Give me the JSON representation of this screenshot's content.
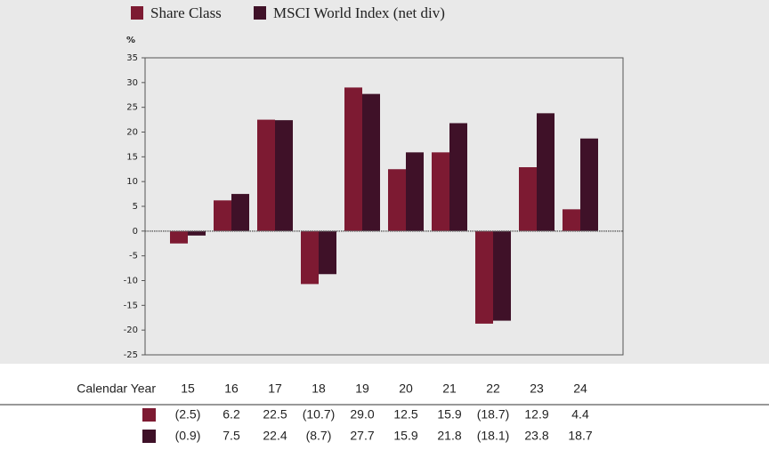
{
  "chart_data": {
    "type": "bar",
    "y_label": "%",
    "x_label": "Calendar Year",
    "categories": [
      "15",
      "16",
      "17",
      "18",
      "19",
      "20",
      "21",
      "22",
      "23",
      "24"
    ],
    "series": [
      {
        "name": "Share Class",
        "color": "#7d1a32",
        "values": [
          -2.5,
          6.2,
          22.5,
          -10.7,
          29.0,
          12.5,
          15.9,
          -18.7,
          12.9,
          4.4
        ],
        "value_labels": [
          "(2.5)",
          "6.2",
          "22.5",
          "(10.7)",
          "29.0",
          "12.5",
          "15.9",
          "(18.7)",
          "12.9",
          "4.4"
        ]
      },
      {
        "name": "MSCI World Index (net div)",
        "color": "#3f1128",
        "values": [
          -0.9,
          7.5,
          22.4,
          -8.7,
          27.7,
          15.9,
          21.8,
          -18.1,
          23.8,
          18.7
        ],
        "value_labels": [
          "(0.9)",
          "7.5",
          "22.4",
          "(8.7)",
          "27.7",
          "15.9",
          "21.8",
          "(18.1)",
          "23.8",
          "18.7"
        ]
      }
    ],
    "ylim": [
      -25,
      35
    ],
    "yticks": [
      35,
      30,
      25,
      20,
      15,
      10,
      5,
      0,
      -5,
      -10,
      -15,
      -20,
      -25
    ],
    "grid": false
  }
}
